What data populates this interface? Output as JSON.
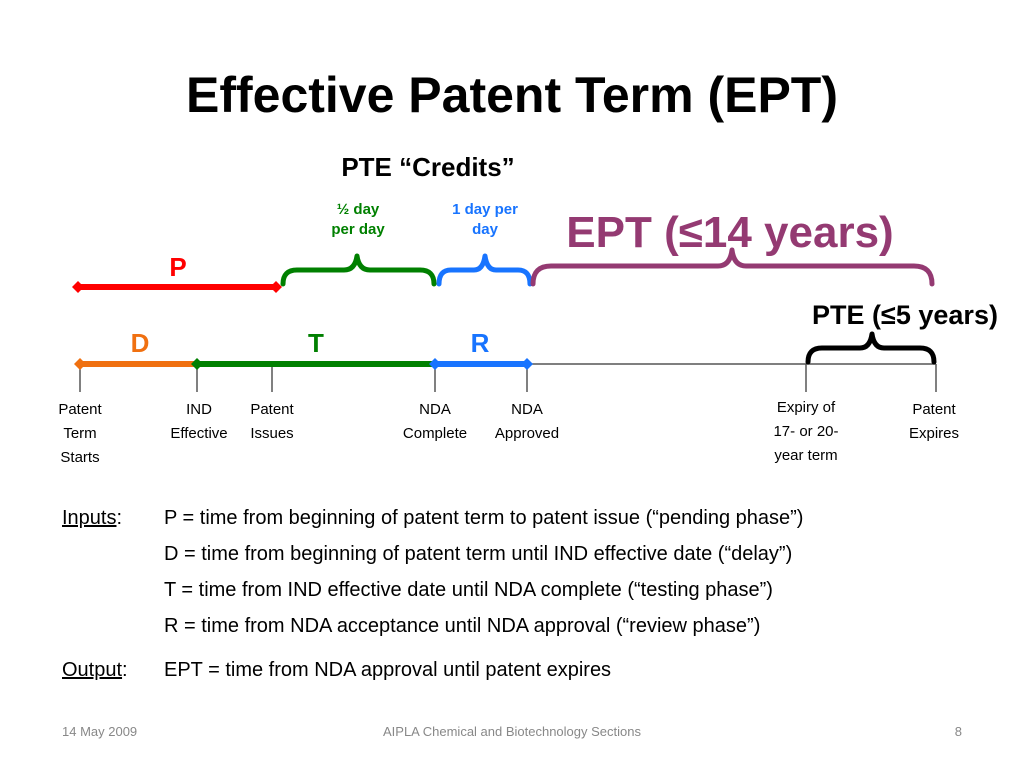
{
  "slide": {
    "title": "Effective Patent Term (EPT)"
  },
  "diagram": {
    "pte_credits_label": "PTE “Credits”",
    "half_day_line1": "½ day",
    "half_day_line2": "per day",
    "one_day_line1": "1 day per",
    "one_day_line2": "day",
    "ept_label": "EPT (≤14 years)",
    "pte_label": "PTE (≤5 years)",
    "phase_p": "P",
    "phase_d": "D",
    "phase_t": "T",
    "phase_r": "R",
    "colors": {
      "p": "#ff0000",
      "d": "#f07010",
      "t": "#008000",
      "r": "#1874ff",
      "ept": "#943a72",
      "pte": "#000000",
      "axis": "#555555"
    },
    "ticks": [
      {
        "line1": "Patent",
        "line2": "Term",
        "line3": "Starts"
      },
      {
        "line1": "IND",
        "line2": "Effective",
        "line3": ""
      },
      {
        "line1": "Patent",
        "line2": "Issues",
        "line3": ""
      },
      {
        "line1": "NDA",
        "line2": "Complete",
        "line3": ""
      },
      {
        "line1": "NDA",
        "line2": "Approved",
        "line3": ""
      },
      {
        "line1": "Expiry of",
        "line2": "17- or 20-",
        "line3": "year term"
      },
      {
        "line1": "Patent",
        "line2": "Expires",
        "line3": ""
      }
    ]
  },
  "inputs": {
    "label": "Inputs",
    "sep": ":",
    "items": [
      "P = time from beginning of patent term to patent issue (“pending phase”)",
      "D = time from beginning of patent term until IND effective date (“delay”)",
      "T = time from IND effective date until NDA complete (“testing phase”)",
      "R = time from NDA acceptance until NDA approval (“review phase”)"
    ]
  },
  "output": {
    "label": "Output",
    "sep": ":",
    "text": "EPT = time from NDA approval until patent expires"
  },
  "footer": {
    "date": "14 May 2009",
    "org": "AIPLA Chemical and Biotechnology Sections",
    "page": "8"
  }
}
